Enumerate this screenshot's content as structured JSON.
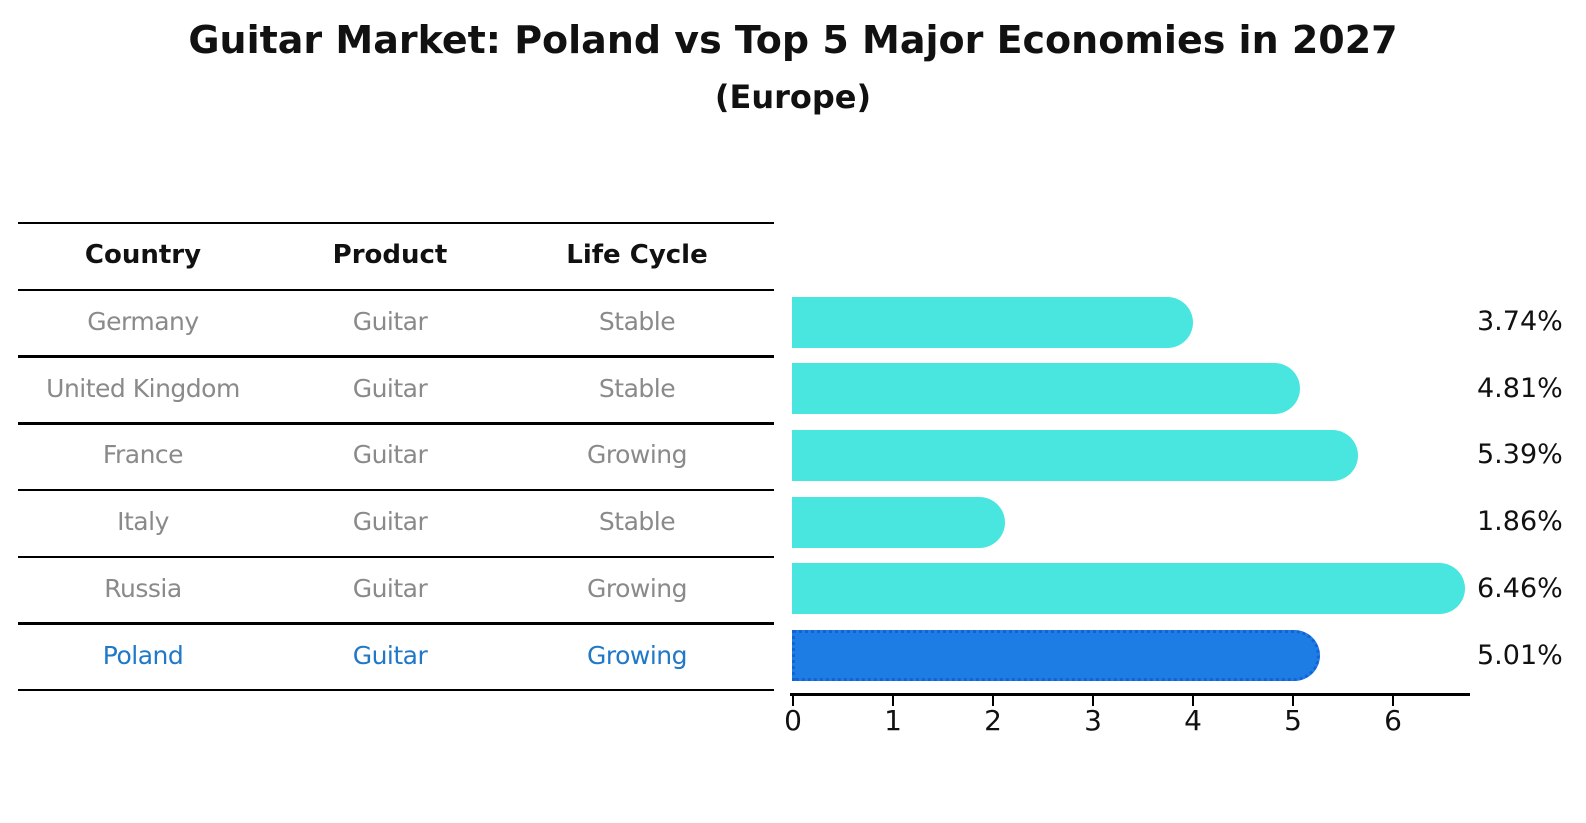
{
  "title": "Guitar Market: Poland vs Top 5 Major Economies in 2027",
  "subtitle": "(Europe)",
  "table": {
    "columns": [
      "Country",
      "Product",
      "Life Cycle"
    ],
    "rows": [
      {
        "country": "Germany",
        "product": "Guitar",
        "life_cycle": "Stable",
        "highlight": false
      },
      {
        "country": "United Kingdom",
        "product": "Guitar",
        "life_cycle": "Stable",
        "highlight": false
      },
      {
        "country": "France",
        "product": "Guitar",
        "life_cycle": "Growing",
        "highlight": false
      },
      {
        "country": "Italy",
        "product": "Guitar",
        "life_cycle": "Stable",
        "highlight": false
      },
      {
        "country": "Russia",
        "product": "Guitar",
        "life_cycle": "Growing",
        "highlight": false
      },
      {
        "country": "Poland",
        "product": "Guitar",
        "life_cycle": "Growing",
        "highlight": true
      }
    ]
  },
  "chart_data": {
    "type": "bar",
    "orientation": "horizontal",
    "title": "Guitar Market: Poland vs Top 5 Major Economies in 2027",
    "subtitle": "(Europe)",
    "categories": [
      "Germany",
      "United Kingdom",
      "France",
      "Italy",
      "Russia",
      "Poland"
    ],
    "values": [
      3.74,
      4.81,
      5.39,
      1.86,
      6.46,
      5.01
    ],
    "value_labels": [
      "3.74%",
      "4.81%",
      "5.39%",
      "1.86%",
      "6.46%",
      "5.01%"
    ],
    "xticks": [
      "0",
      "1",
      "2",
      "3",
      "4",
      "5",
      "6"
    ],
    "xlim": [
      0,
      6.78
    ],
    "grid": false,
    "legend": "none",
    "highlight_category": "Poland",
    "colors": {
      "bar": "#48E6DF",
      "highlight_bar": "#1E7DE5",
      "highlight_border": "#1263D6",
      "row_text": "#8A8A8A",
      "highlight_text": "#1F78C8",
      "label_text": "#111111",
      "line": "#000000"
    }
  }
}
